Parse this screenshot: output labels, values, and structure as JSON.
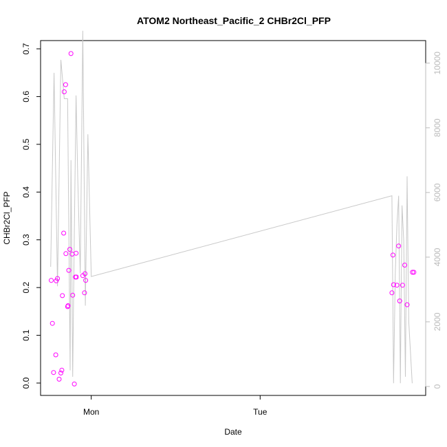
{
  "chart_data": {
    "type": "scatter",
    "title": "ATOM2 Northeast_Pacific_2 CHBr2Cl_PFP",
    "xlabel": "Date",
    "ylabel": "CHBr2Cl_PFP",
    "x_ticks": [
      {
        "value": 1.0,
        "label": "Mon"
      },
      {
        "value": 2.0,
        "label": "Tue"
      }
    ],
    "xlim": [
      0.7,
      2.98
    ],
    "ylim": [
      0,
      0.7
    ],
    "y_ticks": [
      0.0,
      0.1,
      0.2,
      0.3,
      0.4,
      0.5,
      0.6,
      0.7
    ],
    "y_tick_labels": [
      "0.0",
      "0.1",
      "0.2",
      "0.3",
      "0.4",
      "0.5",
      "0.6",
      "0.7"
    ],
    "y2lim": [
      0,
      10400
    ],
    "y2_ticks": [
      0,
      2000,
      4000,
      6000,
      8000,
      10000
    ],
    "y2_tick_labels": [
      "0",
      "2000",
      "4000",
      "6000",
      "8000",
      "10000"
    ],
    "grid": false,
    "legend": "none",
    "colors": {
      "points": "#ff00ff",
      "line": "#c8c8c8",
      "secondary_axis": "#bbbbbb"
    },
    "series": [
      {
        "kind": "points",
        "axis": "left",
        "x": [
          0.763,
          0.77,
          0.777,
          0.79,
          0.793,
          0.8,
          0.81,
          0.82,
          0.826,
          0.829,
          0.837,
          0.84,
          0.848,
          0.85,
          0.86,
          0.863,
          0.867,
          0.873,
          0.88,
          0.887,
          0.89,
          0.9,
          0.906,
          0.91,
          0.912,
          0.95,
          0.96,
          0.963,
          0.967,
          2.78,
          2.786,
          2.79,
          2.81,
          2.82,
          2.826,
          2.843,
          2.856,
          2.87,
          2.902,
          2.91
        ],
        "y": [
          0.215,
          0.125,
          0.022,
          0.059,
          0.214,
          0.219,
          0.008,
          0.021,
          0.027,
          0.183,
          0.314,
          0.61,
          0.625,
          0.271,
          0.16,
          0.162,
          0.236,
          0.28,
          0.69,
          0.27,
          0.184,
          -0.002,
          0.222,
          0.272,
          0.222,
          0.225,
          0.189,
          0.229,
          0.215,
          0.189,
          0.268,
          0.206,
          0.205,
          0.287,
          0.172,
          0.205,
          0.247,
          0.164,
          0.232,
          0.232
        ]
      },
      {
        "kind": "line",
        "axis": "right",
        "x": [
          0.76,
          0.78,
          0.8,
          0.82,
          0.84,
          0.86,
          0.875,
          0.88,
          0.89,
          0.9,
          0.91,
          0.92,
          0.935,
          0.95,
          0.965,
          0.98,
          1.0,
          2.78,
          2.79,
          2.8,
          2.81,
          2.82,
          2.83,
          2.84,
          2.85,
          2.86,
          2.87,
          2.88,
          2.9
        ],
        "y": [
          3700,
          9700,
          3100,
          10100,
          8900,
          8900,
          500,
          7000,
          300,
          4800,
          9000,
          6500,
          3500,
          11000,
          2500,
          7800,
          3400,
          5900,
          100,
          3500,
          5000,
          5900,
          100,
          5600,
          4500,
          300,
          6500,
          2000,
          100
        ]
      }
    ]
  }
}
